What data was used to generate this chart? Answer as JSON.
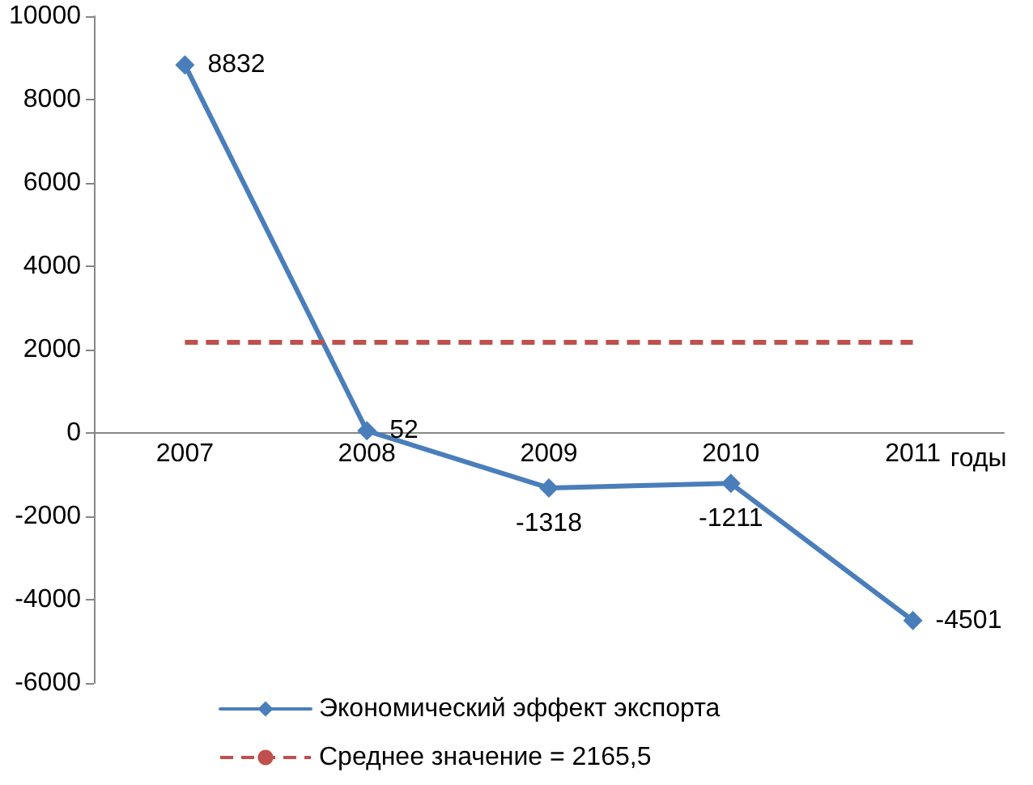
{
  "chart_data": {
    "type": "line",
    "xlabel": "годы",
    "categories": [
      "2007",
      "2008",
      "2009",
      "2010",
      "2011"
    ],
    "series": [
      {
        "name": "Экономический эффект экспорта",
        "color": "#4a7ebb",
        "values": [
          8832,
          52,
          -1318,
          -1211,
          -4501
        ]
      }
    ],
    "ylim": [
      -6000,
      10000
    ],
    "yticks": [
      -6000,
      -4000,
      -2000,
      0,
      2000,
      4000,
      6000,
      8000,
      10000
    ],
    "ref_lines": [
      {
        "axis": "y",
        "value": 2165.5,
        "label": "Среднее значение = 2165,5",
        "color": "#c0504d",
        "line_style": "dashed"
      }
    ],
    "data_labels": true,
    "marker": "diamond",
    "line_style": "solid",
    "legend": "bottom"
  }
}
